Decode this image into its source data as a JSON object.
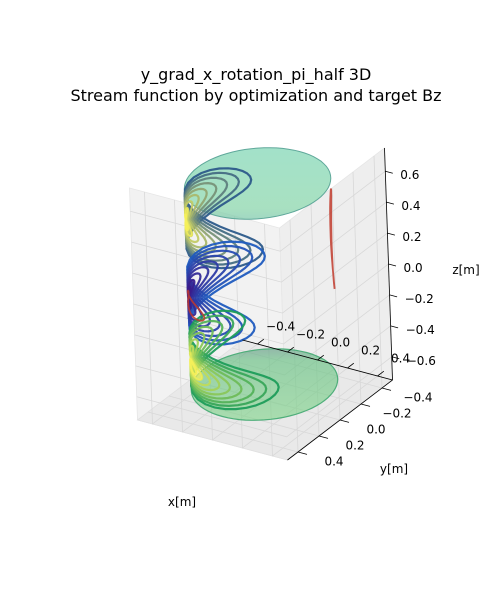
{
  "chart_data": {
    "type": "surface-3d-contour",
    "title_lines": [
      "y_grad_x_rotation_pi_half 3D",
      "Stream function by optimization and target Bz"
    ],
    "xlabel": "x[m]",
    "ylabel": "y[m]",
    "zlabel": "z[m]",
    "x_ticks": [
      "−0.4",
      "−0.2",
      "0.0",
      "0.2",
      "0.4"
    ],
    "y_ticks": [
      "−0.4",
      "−0.2",
      "0.0",
      "0.2",
      "0.4"
    ],
    "z_ticks": [
      "0.6",
      "0.4",
      "0.2",
      "0.0",
      "−0.2",
      "−0.4",
      "−0.6"
    ],
    "xlim": [
      -0.5,
      0.5
    ],
    "ylim": [
      -0.5,
      0.5
    ],
    "zlim": [
      -0.75,
      0.75
    ],
    "grid": true,
    "surface": {
      "shape": "cylinder",
      "radius": 0.4,
      "z_range": [
        -0.65,
        0.65
      ],
      "alpha": 0.6
    },
    "stream_function": {
      "upper_band": {
        "z_center": 0.45,
        "peak": "positive",
        "peak_color": "#f5f05a"
      },
      "middle_band": {
        "z_center": -0.05,
        "peak": "negative",
        "peak_color": "#3b1b8a"
      },
      "lower_band": {
        "z_center": -0.45,
        "peak": "positive",
        "peak_color": "#f5f05a"
      }
    },
    "colormap": "viridis",
    "target_bz_color": "#c0392b"
  }
}
